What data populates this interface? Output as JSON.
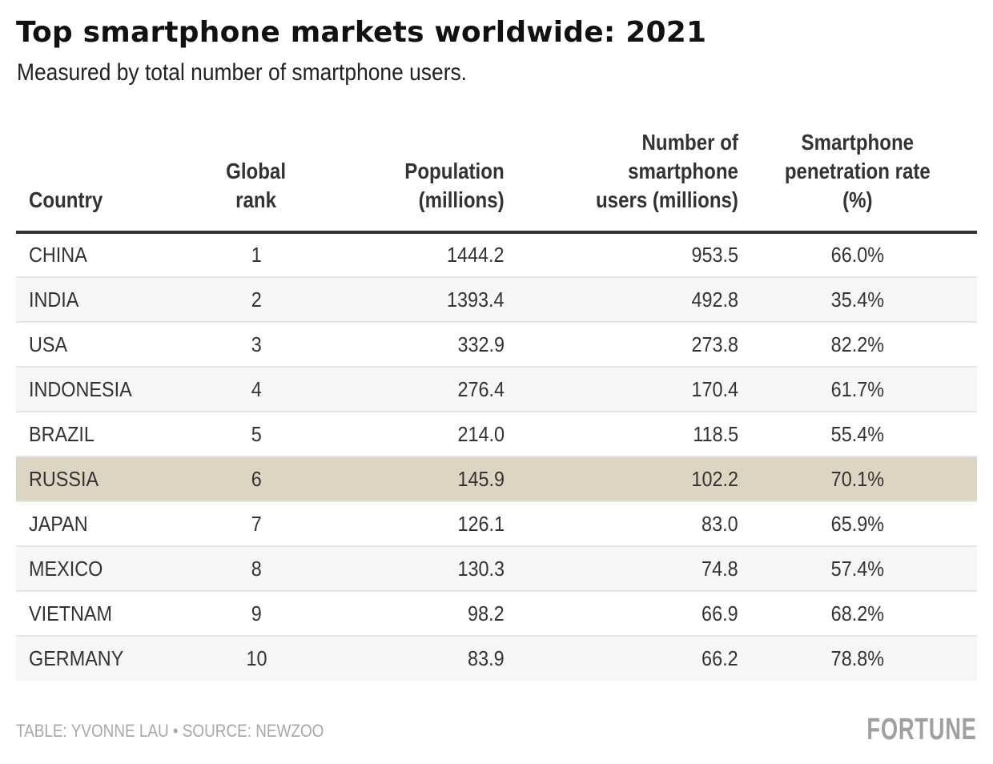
{
  "header": {
    "title": "Top smartphone markets worldwide: 2021",
    "subtitle": "Measured by total number of smartphone users."
  },
  "chart_data": {
    "type": "table",
    "title": "Top smartphone markets worldwide: 2021",
    "subtitle": "Measured by total number of smartphone users.",
    "columns": [
      "Country",
      "Global rank",
      "Population (millions)",
      "Number of smartphone users (millions)",
      "Smartphone penetration rate (%)"
    ],
    "highlight_color": "#dcd5c1",
    "highlighted_row": "RUSSIA",
    "rows": [
      {
        "country": "CHINA",
        "rank": "1",
        "population": "1444.2",
        "users": "953.5",
        "rate": "66.0%",
        "highlight": false
      },
      {
        "country": "INDIA",
        "rank": "2",
        "population": "1393.4",
        "users": "492.8",
        "rate": "35.4%",
        "highlight": false
      },
      {
        "country": "USA",
        "rank": "3",
        "population": "332.9",
        "users": "273.8",
        "rate": "82.2%",
        "highlight": false
      },
      {
        "country": "INDONESIA",
        "rank": "4",
        "population": "276.4",
        "users": "170.4",
        "rate": "61.7%",
        "highlight": false
      },
      {
        "country": "BRAZIL",
        "rank": "5",
        "population": "214.0",
        "users": "118.5",
        "rate": "55.4%",
        "highlight": false
      },
      {
        "country": "RUSSIA",
        "rank": "6",
        "population": "145.9",
        "users": "102.2",
        "rate": "70.1%",
        "highlight": true
      },
      {
        "country": "JAPAN",
        "rank": "7",
        "population": "126.1",
        "users": "83.0",
        "rate": "65.9%",
        "highlight": false
      },
      {
        "country": "MEXICO",
        "rank": "8",
        "population": "130.3",
        "users": "74.8",
        "rate": "57.4%",
        "highlight": false
      },
      {
        "country": "VIETNAM",
        "rank": "9",
        "population": "98.2",
        "users": "66.9",
        "rate": "68.2%",
        "highlight": false
      },
      {
        "country": "GERMANY",
        "rank": "10",
        "population": "83.9",
        "users": "66.2",
        "rate": "78.8%",
        "highlight": false
      }
    ]
  },
  "table": {
    "headers": {
      "country": [
        "Country"
      ],
      "rank": [
        "Global",
        "rank"
      ],
      "population": [
        "Population",
        "(millions)"
      ],
      "users": [
        "Number of",
        "smartphone",
        "users (millions)"
      ],
      "rate": [
        "Smartphone",
        "penetration rate",
        "(%)"
      ]
    }
  },
  "footer": {
    "credit": "TABLE: YVONNE LAU • SOURCE: NEWZOO",
    "logo": "FORTUNE"
  }
}
